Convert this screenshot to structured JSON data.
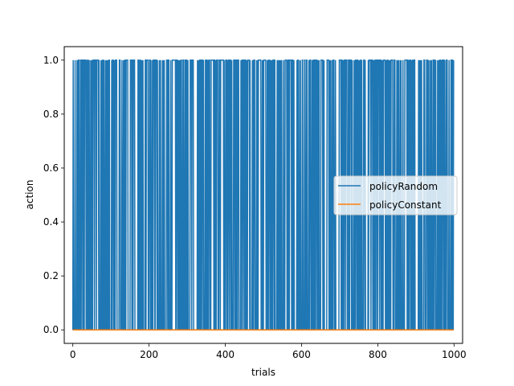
{
  "chart_data": {
    "type": "line",
    "title": "",
    "xlabel": "trials",
    "ylabel": "action",
    "xlim": [
      -22.5,
      1022.5
    ],
    "ylim": [
      -0.05,
      1.05
    ],
    "x_ticks": [
      0,
      200,
      400,
      600,
      800,
      1000
    ],
    "y_ticks": [
      0.0,
      0.2,
      0.4,
      0.6,
      0.8,
      1.0
    ],
    "x_tick_labels": [
      "0",
      "200",
      "400",
      "600",
      "800",
      "1000"
    ],
    "y_tick_labels": [
      "0.0",
      "0.2",
      "0.4",
      "0.6",
      "0.8",
      "1.0"
    ],
    "grid": false,
    "legend_position": "center-right",
    "series": [
      {
        "name": "policyRandom",
        "color": "#1f77b4",
        "description_values": "binary actions (0 or 1) for trials 0–999",
        "x_range": [
          0,
          999
        ],
        "value_set": [
          0,
          1
        ]
      },
      {
        "name": "policyConstant",
        "color": "#ff7f0e",
        "x_range": [
          0,
          999
        ],
        "constant_value": 0
      }
    ]
  }
}
